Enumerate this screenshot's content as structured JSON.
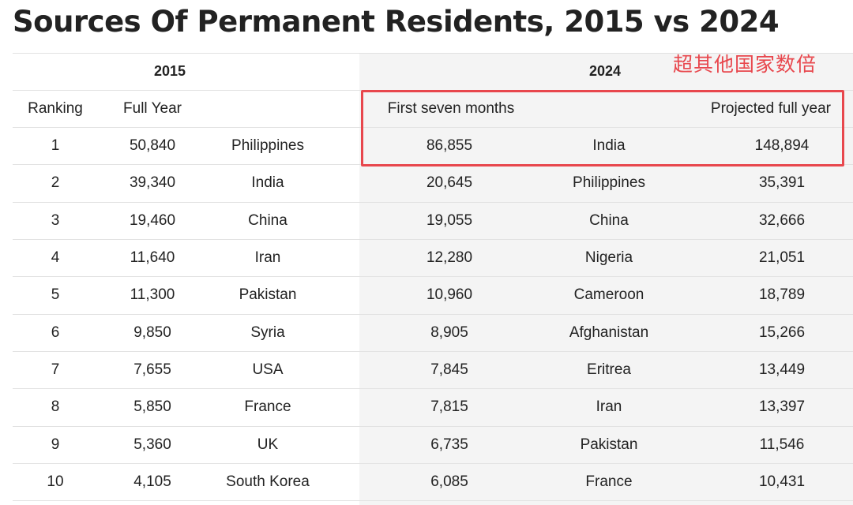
{
  "title": "Sources Of Permanent Residents, 2015 vs 2024",
  "annotation": "超其他国家数倍",
  "header": {
    "year_2015": "2015",
    "year_2024": "2024",
    "col_ranking": "Ranking",
    "col_full_year": "Full Year",
    "col_first_seven_months": "First seven months",
    "col_projected_full_year": "Projected full year"
  },
  "rows": [
    {
      "rank": "1",
      "full_2015": "50,840",
      "country_2015": "Philippines",
      "first7_2024": "86,855",
      "country_2024": "India",
      "projected_2024": "148,894"
    },
    {
      "rank": "2",
      "full_2015": "39,340",
      "country_2015": "India",
      "first7_2024": "20,645",
      "country_2024": "Philippines",
      "projected_2024": "35,391"
    },
    {
      "rank": "3",
      "full_2015": "19,460",
      "country_2015": "China",
      "first7_2024": "19,055",
      "country_2024": "China",
      "projected_2024": "32,666"
    },
    {
      "rank": "4",
      "full_2015": "11,640",
      "country_2015": "Iran",
      "first7_2024": "12,280",
      "country_2024": "Nigeria",
      "projected_2024": "21,051"
    },
    {
      "rank": "5",
      "full_2015": "11,300",
      "country_2015": "Pakistan",
      "first7_2024": "10,960",
      "country_2024": "Cameroon",
      "projected_2024": "18,789"
    },
    {
      "rank": "6",
      "full_2015": "9,850",
      "country_2015": "Syria",
      "first7_2024": "8,905",
      "country_2024": "Afghanistan",
      "projected_2024": "15,266"
    },
    {
      "rank": "7",
      "full_2015": "7,655",
      "country_2015": "USA",
      "first7_2024": "7,845",
      "country_2024": "Eritrea",
      "projected_2024": "13,449"
    },
    {
      "rank": "8",
      "full_2015": "5,850",
      "country_2015": "France",
      "first7_2024": "7,815",
      "country_2024": "Iran",
      "projected_2024": "13,397"
    },
    {
      "rank": "9",
      "full_2015": "5,360",
      "country_2015": "UK",
      "first7_2024": "6,735",
      "country_2024": "Pakistan",
      "projected_2024": "11,546"
    },
    {
      "rank": "10",
      "full_2015": "4,105",
      "country_2015": "South Korea",
      "first7_2024": "6,085",
      "country_2024": "France",
      "projected_2024": "10,431"
    }
  ],
  "colors": {
    "annotation": "#e8474d",
    "shade_2024": "#f4f4f4",
    "rule": "#e2e2e2",
    "text": "#222222"
  }
}
